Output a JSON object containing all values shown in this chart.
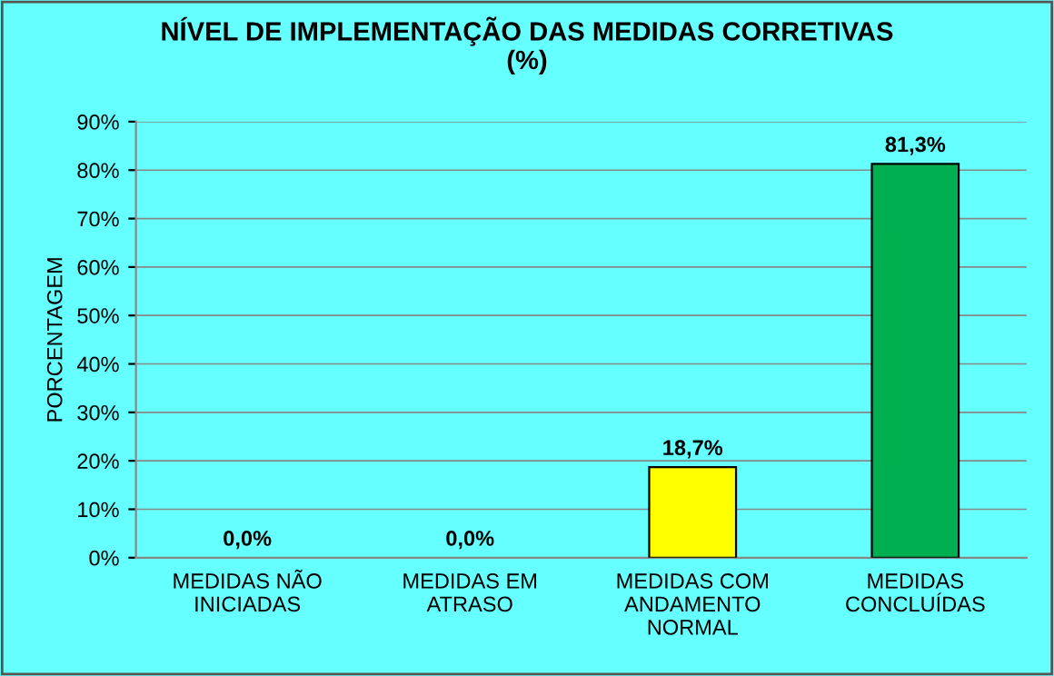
{
  "chart_data": {
    "type": "bar",
    "title": "NÍVEL DE IMPLEMENTAÇÃO DAS MEDIDAS CORRETIVAS\n(%)",
    "ylabel": "PORCENTAGEM",
    "categories": [
      "MEDIDAS NÃO\nINICIADAS",
      "MEDIDAS EM\nATRASO",
      "MEDIDAS COM\nANDAMENTO\nNORMAL",
      "MEDIDAS\nCONCLUÍDAS"
    ],
    "values": [
      0.0,
      0.0,
      18.7,
      81.3
    ],
    "colors": [
      null,
      null,
      "#ffff00",
      "#00b050"
    ],
    "value_labels": [
      "0,0%",
      "0,0%",
      "18,7%",
      "81,3%"
    ],
    "ylim": [
      0,
      90
    ],
    "yticks": [
      {
        "value": 0,
        "label": "0%"
      },
      {
        "value": 10,
        "label": "10%"
      },
      {
        "value": 20,
        "label": "20%"
      },
      {
        "value": 30,
        "label": "30%"
      },
      {
        "value": 40,
        "label": "40%"
      },
      {
        "value": 50,
        "label": "50%"
      },
      {
        "value": 60,
        "label": "60%"
      },
      {
        "value": 70,
        "label": "70%"
      },
      {
        "value": 80,
        "label": "80%"
      },
      {
        "value": 90,
        "label": "90%"
      }
    ],
    "grid": "y",
    "legend": false
  }
}
